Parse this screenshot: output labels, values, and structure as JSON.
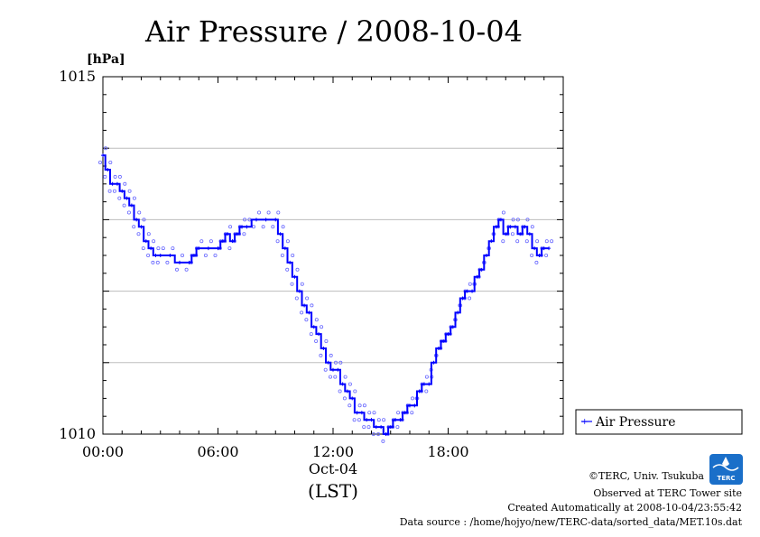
{
  "chart_data": {
    "type": "line",
    "title": "Air Pressure / 2008-10-04",
    "ylabel": "[hPa]",
    "ylim": [
      1010,
      1015
    ],
    "yticks": [
      "1015",
      "1010"
    ],
    "xlim": [
      0,
      24
    ],
    "xticks": [
      {
        "value": 0,
        "label": "00:00"
      },
      {
        "value": 6,
        "label": "06:00"
      },
      {
        "value": 12,
        "label": "12:00"
      },
      {
        "value": 18,
        "label": "18:00"
      }
    ],
    "xdate": "Oct-04",
    "xlabel": "(LST)",
    "grid": true,
    "legend_position": "right",
    "series": [
      {
        "name": "Air Pressure",
        "color": "#0000ff",
        "points": [
          [
            0.0,
            1013.9
          ],
          [
            0.25,
            1013.7
          ],
          [
            0.5,
            1013.5
          ],
          [
            0.75,
            1013.5
          ],
          [
            1.0,
            1013.4
          ],
          [
            1.25,
            1013.3
          ],
          [
            1.5,
            1013.2
          ],
          [
            1.75,
            1013.0
          ],
          [
            2.0,
            1012.9
          ],
          [
            2.25,
            1012.7
          ],
          [
            2.5,
            1012.6
          ],
          [
            2.75,
            1012.5
          ],
          [
            3.0,
            1012.5
          ],
          [
            3.5,
            1012.5
          ],
          [
            4.0,
            1012.4
          ],
          [
            4.5,
            1012.4
          ],
          [
            4.75,
            1012.5
          ],
          [
            5.0,
            1012.6
          ],
          [
            5.5,
            1012.6
          ],
          [
            6.0,
            1012.6
          ],
          [
            6.25,
            1012.7
          ],
          [
            6.5,
            1012.8
          ],
          [
            6.75,
            1012.7
          ],
          [
            7.0,
            1012.8
          ],
          [
            7.25,
            1012.9
          ],
          [
            7.5,
            1012.9
          ],
          [
            8.0,
            1013.0
          ],
          [
            8.5,
            1013.0
          ],
          [
            9.0,
            1013.0
          ],
          [
            9.25,
            1012.8
          ],
          [
            9.5,
            1012.6
          ],
          [
            9.75,
            1012.4
          ],
          [
            10.0,
            1012.2
          ],
          [
            10.25,
            1012.0
          ],
          [
            10.5,
            1011.8
          ],
          [
            10.75,
            1011.7
          ],
          [
            11.0,
            1011.5
          ],
          [
            11.25,
            1011.4
          ],
          [
            11.5,
            1011.2
          ],
          [
            11.75,
            1011.0
          ],
          [
            12.0,
            1010.9
          ],
          [
            12.25,
            1010.9
          ],
          [
            12.5,
            1010.7
          ],
          [
            12.75,
            1010.6
          ],
          [
            13.0,
            1010.5
          ],
          [
            13.25,
            1010.3
          ],
          [
            13.5,
            1010.3
          ],
          [
            13.75,
            1010.2
          ],
          [
            14.0,
            1010.2
          ],
          [
            14.25,
            1010.1
          ],
          [
            14.5,
            1010.1
          ],
          [
            14.75,
            1010.0
          ],
          [
            15.0,
            1010.1
          ],
          [
            15.25,
            1010.2
          ],
          [
            15.5,
            1010.2
          ],
          [
            15.75,
            1010.3
          ],
          [
            16.0,
            1010.4
          ],
          [
            16.25,
            1010.4
          ],
          [
            16.5,
            1010.6
          ],
          [
            16.75,
            1010.7
          ],
          [
            17.0,
            1010.7
          ],
          [
            17.25,
            1011.0
          ],
          [
            17.5,
            1011.2
          ],
          [
            17.75,
            1011.3
          ],
          [
            18.0,
            1011.4
          ],
          [
            18.25,
            1011.5
          ],
          [
            18.5,
            1011.7
          ],
          [
            18.75,
            1011.9
          ],
          [
            19.0,
            1012.0
          ],
          [
            19.25,
            1012.0
          ],
          [
            19.5,
            1012.2
          ],
          [
            19.75,
            1012.3
          ],
          [
            20.0,
            1012.5
          ],
          [
            20.25,
            1012.7
          ],
          [
            20.5,
            1012.9
          ],
          [
            20.75,
            1013.0
          ],
          [
            21.0,
            1012.8
          ],
          [
            21.25,
            1012.9
          ],
          [
            21.5,
            1012.9
          ],
          [
            21.75,
            1012.8
          ],
          [
            22.0,
            1012.9
          ],
          [
            22.25,
            1012.8
          ],
          [
            22.5,
            1012.6
          ],
          [
            22.75,
            1012.5
          ],
          [
            23.0,
            1012.6
          ],
          [
            23.25,
            1012.6
          ]
        ]
      }
    ]
  },
  "legend": {
    "label": "Air Pressure"
  },
  "credits": {
    "copyright": "©TERC, Univ. Tsukuba",
    "observed": "Observed at TERC Tower site",
    "created": "Created Automatically at 2008-10-04/23:55:42",
    "source": "Data source : /home/hojyo/new/TERC-data/sorted_data/MET.10s.dat"
  },
  "logo": {
    "text": "TERC",
    "color": "#1a6fc9"
  }
}
